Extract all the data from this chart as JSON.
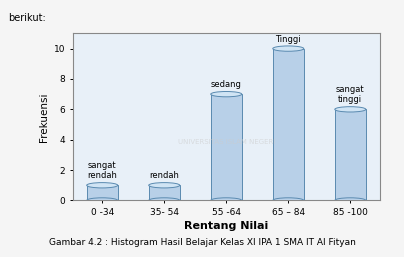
{
  "categories": [
    "0 -34",
    "35- 54",
    "55 -64",
    "65 – 84",
    "85 -100"
  ],
  "values": [
    1,
    1,
    7,
    10,
    6
  ],
  "labels": [
    "sangat\nrendah",
    "rendah",
    "sedang",
    "Tinggi",
    "sangat\ntinggi"
  ],
  "bar_color": "#b8d0e8",
  "bar_edge_color": "#5a8ab0",
  "bar_top_color": "#d0e4f4",
  "ylabel": "Frekuensi",
  "xlabel": "Rentang Nilai",
  "ylim": [
    0,
    11
  ],
  "yticks": [
    0,
    2,
    4,
    6,
    8,
    10
  ],
  "caption": "Gambar 4.2 : Histogram Hasil Belajar Kelas XI IPA 1 SMA IT Al Fityan",
  "header_text": "berikut:",
  "plot_bg": "#e8f0f8",
  "fig_bg": "#f5f5f5"
}
